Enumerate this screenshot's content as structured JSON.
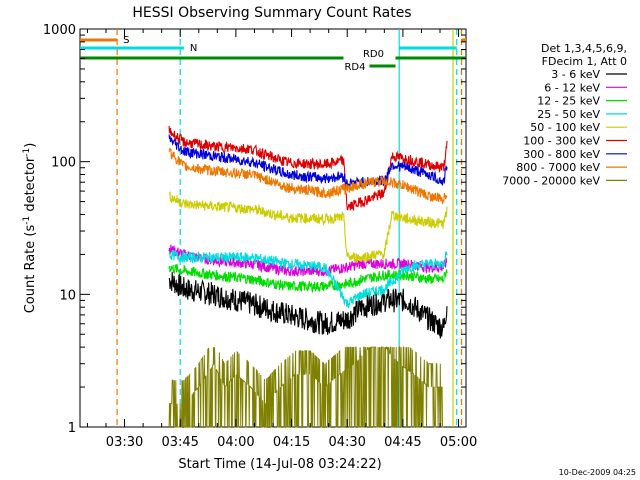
{
  "chart_data": {
    "type": "line",
    "title": "HESSI Observing Summary Count Rates",
    "xlabel": "Start Time (14-Jul-08 03:24:22)",
    "ylabel": "Count Rate (s⁻¹ detector⁻¹)",
    "ylabel_main": "Count Rate (s",
    "ylabel_sup1": "-1",
    "ylabel_mid": " detector",
    "ylabel_sup2": "-1",
    "ylabel_end": ")",
    "y_scale": "log",
    "ylim": [
      1,
      1000
    ],
    "xlim_minutes": [
      -6,
      98
    ],
    "x_ticks": [
      {
        "label": "03:30",
        "minute": 6
      },
      {
        "label": "03:45",
        "minute": 21
      },
      {
        "label": "04:00",
        "minute": 36
      },
      {
        "label": "04:15",
        "minute": 51
      },
      {
        "label": "04:30",
        "minute": 66
      },
      {
        "label": "04:45",
        "minute": 81
      },
      {
        "label": "05:00",
        "minute": 96
      }
    ],
    "y_ticks": [
      {
        "label": "1",
        "value": 1
      },
      {
        "label": "10",
        "value": 10
      },
      {
        "label": "100",
        "value": 100
      },
      {
        "label": "1000",
        "value": 1000
      }
    ],
    "legend": {
      "placement": "right",
      "header": [
        "Det 1,3,4,5,6,9,",
        "FDecim 1, Att 0"
      ]
    },
    "series": [
      {
        "name": "3 - 6 keV",
        "color": "#000000",
        "points": [
          [
            18,
            13
          ],
          [
            22,
            11
          ],
          [
            30,
            10
          ],
          [
            40,
            8.5
          ],
          [
            50,
            7
          ],
          [
            60,
            6
          ],
          [
            66,
            6.5
          ],
          [
            70,
            8
          ],
          [
            76,
            9
          ],
          [
            82,
            9
          ],
          [
            88,
            6.5
          ],
          [
            92,
            5.5
          ],
          [
            93,
            9
          ]
        ]
      },
      {
        "name": "6 - 12 keV",
        "color": "#dd00dd",
        "points": [
          [
            18,
            22
          ],
          [
            22,
            20
          ],
          [
            30,
            18
          ],
          [
            40,
            17
          ],
          [
            50,
            15
          ],
          [
            60,
            15
          ],
          [
            66,
            16
          ],
          [
            70,
            17
          ],
          [
            76,
            17
          ],
          [
            82,
            17
          ],
          [
            88,
            16
          ],
          [
            92,
            16
          ],
          [
            93,
            18
          ]
        ]
      },
      {
        "name": "12 - 25 keV",
        "color": "#00dd00",
        "points": [
          [
            18,
            16
          ],
          [
            22,
            15
          ],
          [
            30,
            14
          ],
          [
            40,
            13
          ],
          [
            50,
            11.5
          ],
          [
            60,
            11.5
          ],
          [
            66,
            12
          ],
          [
            70,
            13
          ],
          [
            76,
            14
          ],
          [
            82,
            14
          ],
          [
            88,
            13
          ],
          [
            92,
            13
          ],
          [
            93,
            16
          ]
        ]
      },
      {
        "name": "25 - 50 keV",
        "color": "#00dddd",
        "points": [
          [
            18,
            20
          ],
          [
            22,
            19
          ],
          [
            30,
            19
          ],
          [
            40,
            19
          ],
          [
            50,
            17
          ],
          [
            60,
            16
          ],
          [
            66,
            8.5
          ],
          [
            70,
            10
          ],
          [
            76,
            11
          ],
          [
            80,
            14
          ],
          [
            82,
            16
          ],
          [
            88,
            17
          ],
          [
            92,
            17
          ],
          [
            93,
            22
          ]
        ]
      },
      {
        "name": "50 - 100 keV",
        "color": "#cccc00",
        "points": [
          [
            18,
            55
          ],
          [
            22,
            48
          ],
          [
            30,
            46
          ],
          [
            40,
            44
          ],
          [
            50,
            38
          ],
          [
            60,
            37
          ],
          [
            65,
            38
          ],
          [
            66,
            19
          ],
          [
            70,
            19
          ],
          [
            74,
            20
          ],
          [
            76,
            20
          ],
          [
            78,
            40
          ],
          [
            82,
            37
          ],
          [
            88,
            35
          ],
          [
            92,
            34
          ],
          [
            93,
            45
          ]
        ]
      },
      {
        "name": "100 - 300 keV",
        "color": "#dd0000",
        "points": [
          [
            18,
            170
          ],
          [
            22,
            140
          ],
          [
            30,
            130
          ],
          [
            40,
            125
          ],
          [
            45,
            110
          ],
          [
            50,
            98
          ],
          [
            60,
            95
          ],
          [
            65,
            102
          ],
          [
            66,
            45
          ],
          [
            70,
            50
          ],
          [
            76,
            58
          ],
          [
            78,
            110
          ],
          [
            82,
            105
          ],
          [
            88,
            95
          ],
          [
            92,
            90
          ],
          [
            93,
            140
          ]
        ]
      },
      {
        "name": "300 - 800 keV",
        "color": "#0000dd",
        "points": [
          [
            18,
            150
          ],
          [
            22,
            120
          ],
          [
            30,
            110
          ],
          [
            40,
            100
          ],
          [
            45,
            90
          ],
          [
            50,
            80
          ],
          [
            60,
            75
          ],
          [
            65,
            78
          ],
          [
            66,
            68
          ],
          [
            70,
            70
          ],
          [
            76,
            72
          ],
          [
            78,
            95
          ],
          [
            82,
            90
          ],
          [
            88,
            80
          ],
          [
            92,
            70
          ],
          [
            93,
            100
          ]
        ]
      },
      {
        "name": "800 - 7000 keV",
        "color": "#ee7700",
        "points": [
          [
            18,
            120
          ],
          [
            22,
            92
          ],
          [
            30,
            85
          ],
          [
            40,
            80
          ],
          [
            45,
            72
          ],
          [
            50,
            64
          ],
          [
            60,
            58
          ],
          [
            65,
            62
          ],
          [
            70,
            68
          ],
          [
            76,
            72
          ],
          [
            82,
            65
          ],
          [
            88,
            55
          ],
          [
            92,
            52
          ],
          [
            93,
            60
          ]
        ]
      },
      {
        "name": "7000 - 20000 keV",
        "color": "#808000",
        "points": [
          [
            18,
            1.5
          ],
          [
            22,
            1.5
          ],
          [
            26,
            2
          ],
          [
            30,
            3
          ],
          [
            33,
            2
          ],
          [
            36,
            2.5
          ],
          [
            40,
            2
          ],
          [
            44,
            1.5
          ],
          [
            48,
            2
          ],
          [
            52,
            2.5
          ],
          [
            56,
            2.5
          ],
          [
            60,
            2
          ],
          [
            64,
            2.5
          ],
          [
            68,
            3
          ],
          [
            72,
            4
          ],
          [
            76,
            4
          ],
          [
            80,
            3
          ],
          [
            84,
            2.5
          ],
          [
            88,
            2
          ],
          [
            92,
            2
          ]
        ]
      }
    ],
    "markers": [
      {
        "label": "S",
        "color": "#ee7700",
        "minute_start": -6,
        "minute_end": 4,
        "level": "top",
        "style": "orange"
      },
      {
        "label": "N",
        "color": "#00dddd",
        "minute_start": -6,
        "minute_end": 22,
        "level": "second",
        "style": "cyan"
      },
      {
        "label": "RD0",
        "color": "#008800",
        "minute_start": 65,
        "minute_end": 72,
        "level": "rd0",
        "style": "green"
      },
      {
        "label": "RD4",
        "color": "#008800",
        "minute_start": 72,
        "minute_end": 79,
        "level": "rd4",
        "style": "green"
      }
    ],
    "vertical_lines": [
      {
        "minute": 4,
        "color": "#ee7700",
        "style": "dashed"
      },
      {
        "minute": 21,
        "color": "#00dddd",
        "style": "dashed"
      },
      {
        "minute": 80,
        "color": "#00dddd",
        "style": "solid"
      },
      {
        "minute": 94.5,
        "color": "#cccc00",
        "style": "solid"
      },
      {
        "minute": 95.5,
        "color": "#00dddd",
        "style": "dashed"
      },
      {
        "minute": 96.8,
        "color": "#ee7700",
        "style": "dashed"
      }
    ],
    "footer_date": "10-Dec-2009 04:25"
  }
}
